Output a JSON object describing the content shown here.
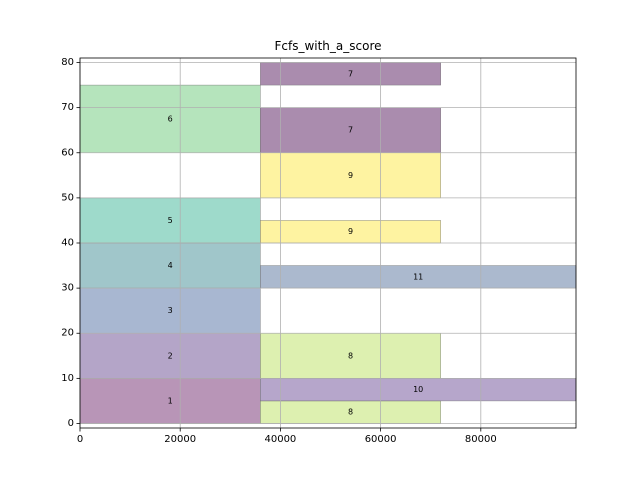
{
  "chart_data": {
    "type": "gantt",
    "title": "Fcfs_with_a_score",
    "xlabel": "",
    "ylabel": "",
    "xlim": [
      0,
      99000
    ],
    "ylim": [
      -1,
      81
    ],
    "x_ticks": [
      0,
      20000,
      40000,
      60000,
      80000
    ],
    "y_ticks": [
      0,
      10,
      20,
      30,
      40,
      50,
      60,
      70,
      80
    ],
    "grid": true,
    "colors": {
      "1": "#a0729f",
      "2": "#9b87b6",
      "3": "#8b9fc2",
      "4": "#80b3b8",
      "5": "#7dcdb9",
      "6": "#9cdba6",
      "7": "#8e6593",
      "8": "#d1eb96",
      "9": "#fdef81",
      "10": "#9e88ba",
      "11": "#8fa1bd"
    },
    "bars": [
      {
        "label": "1",
        "x_start": 0,
        "x_end": 36000,
        "y_start": 0,
        "y_end": 10
      },
      {
        "label": "2",
        "x_start": 0,
        "x_end": 36000,
        "y_start": 10,
        "y_end": 20
      },
      {
        "label": "3",
        "x_start": 0,
        "x_end": 36000,
        "y_start": 20,
        "y_end": 30
      },
      {
        "label": "4",
        "x_start": 0,
        "x_end": 36000,
        "y_start": 30,
        "y_end": 40
      },
      {
        "label": "5",
        "x_start": 0,
        "x_end": 36000,
        "y_start": 40,
        "y_end": 50
      },
      {
        "label": "6",
        "x_start": 0,
        "x_end": 36000,
        "y_start": 60,
        "y_end": 75
      },
      {
        "label": "8",
        "x_start": 36000,
        "x_end": 72000,
        "y_start": 0,
        "y_end": 5
      },
      {
        "label": "10",
        "x_start": 36000,
        "x_end": 99000,
        "y_start": 5,
        "y_end": 10
      },
      {
        "label": "8",
        "x_start": 36000,
        "x_end": 72000,
        "y_start": 10,
        "y_end": 20
      },
      {
        "label": "11",
        "x_start": 36000,
        "x_end": 99000,
        "y_start": 30,
        "y_end": 35
      },
      {
        "label": "9",
        "x_start": 36000,
        "x_end": 72000,
        "y_start": 40,
        "y_end": 45
      },
      {
        "label": "9",
        "x_start": 36000,
        "x_end": 72000,
        "y_start": 50,
        "y_end": 60
      },
      {
        "label": "7",
        "x_start": 36000,
        "x_end": 72000,
        "y_start": 60,
        "y_end": 70
      },
      {
        "label": "7",
        "x_start": 36000,
        "x_end": 72000,
        "y_start": 75,
        "y_end": 80
      }
    ]
  }
}
